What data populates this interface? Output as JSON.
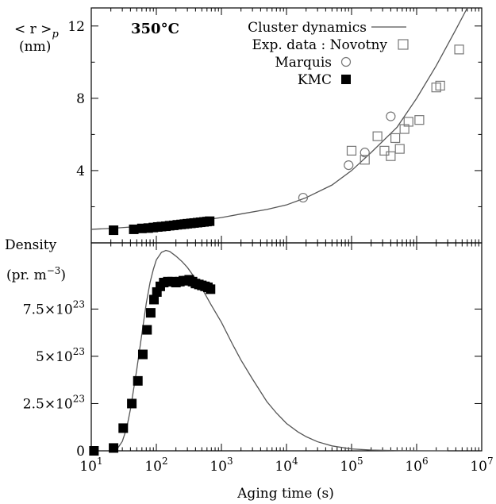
{
  "chart_data": [
    {
      "panel": "top",
      "type": "scatter",
      "x_scale": "log",
      "xlim": [
        10,
        10000000
      ],
      "ylim": [
        0,
        13
      ],
      "y_ticks": [
        "4",
        "8",
        "12"
      ],
      "y_tick_values": [
        4,
        8,
        12
      ],
      "ylabel_line1": "< r >",
      "ylabel_sub": "p",
      "ylabel_line2": "(nm)",
      "annotation": "350°C",
      "legend": {
        "placement": "top-right",
        "entries": [
          {
            "label": "Cluster dynamics",
            "marker": "line"
          },
          {
            "label": "Exp. data :  Novotny",
            "marker": "open-square"
          },
          {
            "label": "Marquis",
            "marker": "open-circle"
          },
          {
            "label": "KMC",
            "marker": "filled-square"
          }
        ]
      },
      "series": [
        {
          "name": "Cluster dynamics",
          "kind": "line",
          "color": "#555555",
          "x": [
            10,
            20,
            50,
            100,
            200,
            500,
            1000,
            2000,
            5000,
            10000,
            20000,
            50000,
            100000,
            200000,
            500000,
            1000000,
            2000000,
            4000000,
            6000000
          ],
          "y": [
            0.75,
            0.8,
            0.9,
            1.0,
            1.1,
            1.25,
            1.4,
            1.6,
            1.85,
            2.1,
            2.5,
            3.2,
            4.0,
            5.0,
            6.4,
            8.0,
            9.8,
            11.8,
            13.0
          ]
        },
        {
          "name": "Novotny",
          "kind": "open-square",
          "x": [
            100000,
            160000,
            250000,
            320000,
            400000,
            470000,
            550000,
            650000,
            750000,
            1100000,
            2000000,
            2300000,
            4500000
          ],
          "y": [
            5.1,
            4.6,
            5.9,
            5.1,
            4.8,
            5.8,
            5.2,
            6.3,
            6.7,
            6.8,
            8.6,
            8.7,
            10.7
          ]
        },
        {
          "name": "Marquis",
          "kind": "open-circle",
          "x": [
            18000,
            90000,
            160000,
            400000
          ],
          "y": [
            2.5,
            4.3,
            5.0,
            7.0
          ]
        },
        {
          "name": "KMC",
          "kind": "filled-square",
          "x": [
            22,
            45,
            60,
            75,
            90,
            105,
            120,
            140,
            160,
            185,
            210,
            240,
            270,
            300,
            340,
            380,
            430,
            480,
            540,
            600,
            660
          ],
          "y": [
            0.7,
            0.75,
            0.8,
            0.82,
            0.85,
            0.88,
            0.9,
            0.92,
            0.95,
            0.97,
            1.0,
            1.02,
            1.04,
            1.06,
            1.08,
            1.1,
            1.12,
            1.14,
            1.16,
            1.18,
            1.2
          ]
        }
      ]
    },
    {
      "panel": "bottom",
      "type": "scatter",
      "x_scale": "log",
      "xlim": [
        10,
        10000000
      ],
      "ylim": [
        0,
        1.1e+24
      ],
      "x_ticks": [
        {
          "base": "10",
          "exp": "1",
          "value": 10
        },
        {
          "base": "10",
          "exp": "2",
          "value": 100
        },
        {
          "base": "10",
          "exp": "3",
          "value": 1000
        },
        {
          "base": "10",
          "exp": "4",
          "value": 10000
        },
        {
          "base": "10",
          "exp": "5",
          "value": 100000
        },
        {
          "base": "10",
          "exp": "6",
          "value": 1000000
        },
        {
          "base": "10",
          "exp": "7",
          "value": 10000000
        }
      ],
      "y_ticks": [
        {
          "mant": "0",
          "exp": "",
          "value": 0
        },
        {
          "mant": "2.5×10",
          "exp": "23",
          "value": 2.5e+23
        },
        {
          "mant": "5×10",
          "exp": "23",
          "value": 5e+23
        },
        {
          "mant": "7.5×10",
          "exp": "23",
          "value": 7.5e+23
        }
      ],
      "ylabel_line1": "Density",
      "ylabel_line2_prefix": "(pr. m",
      "ylabel_line2_sup": "−3",
      "ylabel_line2_suffix": ")",
      "xlabel": "Aging time  (s)",
      "series": [
        {
          "name": "Cluster dynamics",
          "kind": "line",
          "color": "#555555",
          "x": [
            20,
            25,
            30,
            35,
            40,
            50,
            60,
            70,
            80,
            90,
            100,
            120,
            140,
            160,
            200,
            250,
            300,
            400,
            500,
            700,
            1000,
            1500,
            2000,
            3000,
            5000,
            7000,
            10000,
            15000,
            20000,
            30000,
            50000,
            100000,
            200000,
            500000,
            1000000,
            3000000
          ],
          "y": [
            2e+21,
            1e+22,
            5e+22,
            1.2e+23,
            2.2e+23,
            4.3e+23,
            6.2e+23,
            7.8e+23,
            8.9e+23,
            9.6e+23,
            1.01e+24,
            1.05e+24,
            1.06e+24,
            1.055e+24,
            1.03e+24,
            1e+24,
            9.7e+23,
            9.1e+23,
            8.6e+23,
            7.7e+23,
            6.8e+23,
            5.6e+23,
            4.8e+23,
            3.8e+23,
            2.6e+23,
            2e+23,
            1.45e+23,
            1e+23,
            7.5e+22,
            4.8e+22,
            2.6e+22,
            1e+22,
            4e+21,
            1e+21,
            3e+20,
            0
          ]
        },
        {
          "name": "KMC",
          "kind": "filled-square",
          "x": [
            11,
            22,
            31,
            42,
            52,
            62,
            72,
            82,
            92,
            102,
            115,
            130,
            150,
            175,
            200,
            230,
            260,
            290,
            320,
            360,
            400,
            450,
            500,
            560,
            620,
            680
          ],
          "y": [
            0,
            1.5e+22,
            1.2e+23,
            2.5e+23,
            3.7e+23,
            5.1e+23,
            6.4e+23,
            7.3e+23,
            8e+23,
            8.4e+23,
            8.7e+23,
            8.9e+23,
            8.95e+23,
            8.95e+23,
            8.9e+23,
            8.95e+23,
            9e+23,
            9e+23,
            9.05e+23,
            8.95e+23,
            8.85e+23,
            8.8e+23,
            8.75e+23,
            8.7e+23,
            8.65e+23,
            8.55e+23
          ]
        }
      ]
    }
  ]
}
